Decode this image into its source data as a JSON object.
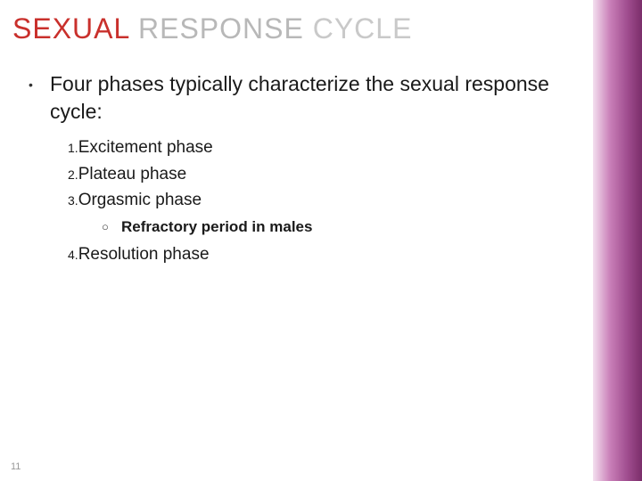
{
  "title": {
    "w1": "SEXUAL",
    "w2": "RESPONSE",
    "w3": "CYCLE"
  },
  "main_bullet": "Four phases typically characterize the sexual response cycle:",
  "items": {
    "n1": "1.",
    "t1": "Excitement phase",
    "n2": "2.",
    "t2": "Plateau phase",
    "n3": "3.",
    "t3": "Orgasmic phase",
    "sub": "Refractory period in males",
    "n4": "4.",
    "t4": "Resolution phase"
  },
  "page_number": "11",
  "colors": {
    "title_red": "#c9302c",
    "title_gray1": "#b8b8b8",
    "title_gray2": "#c9c9c9",
    "body_text": "#1a1a1a",
    "page_num": "#999999",
    "sidebar_light": "#f4e0ef",
    "sidebar_dark": "#7b2e6a"
  }
}
